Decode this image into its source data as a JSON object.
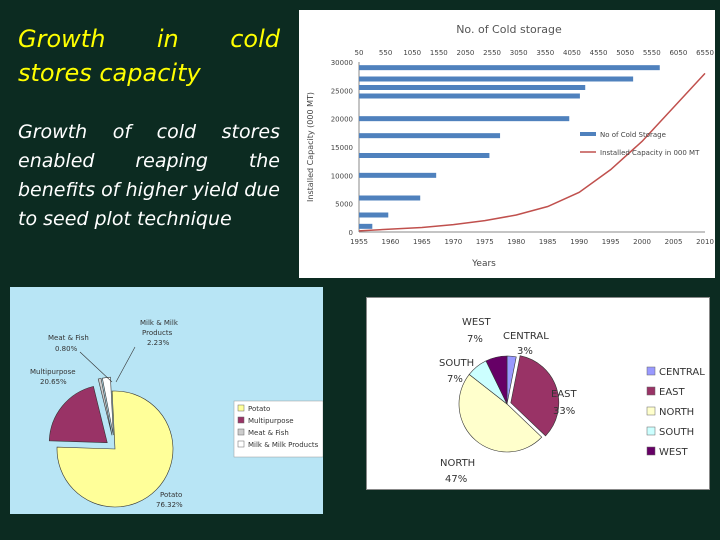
{
  "slide": {
    "title_line1_words": [
      "Growth",
      "in",
      "cold"
    ],
    "title_line2": "stores capacity",
    "body": "Growth of cold stores enabled reaping the benefits of higher yield due to seed plot technique"
  },
  "chart_data": [
    {
      "type": "bar",
      "title": "No. of Cold storage",
      "ylabel": "Installed Capacity (000 MT)",
      "xlabel": "Years",
      "secondary_axis_ticks": [
        50,
        550,
        1050,
        1550,
        2050,
        2550,
        3050,
        3550,
        4050,
        4550,
        5050,
        5550,
        6050,
        6550
      ],
      "secondary_axis_range": [
        50,
        6550
      ],
      "y_ticks": [
        0,
        5000,
        10000,
        15000,
        20000,
        25000,
        30000
      ],
      "ylim": [
        0,
        30000
      ],
      "x_ticks": [
        1955,
        1960,
        1965,
        1970,
        1975,
        1980,
        1985,
        1990,
        1995,
        2000,
        2005,
        2010
      ],
      "xlim": [
        1955,
        2010
      ],
      "bars": {
        "name": "No of Cold Storage",
        "color": "#4f81bd",
        "y_positions": [
          1000,
          3000,
          6000,
          10000,
          13500,
          17000,
          20000,
          24000,
          25500,
          27000,
          29000
        ],
        "values": [
          300,
          600,
          1200,
          1500,
          2500,
          2700,
          4000,
          4200,
          4300,
          5200,
          5700
        ]
      },
      "line": {
        "name": "Installed Capacity in 000 MT",
        "color": "#c0504d",
        "x": [
          1955,
          1960,
          1965,
          1970,
          1975,
          1980,
          1985,
          1990,
          1995,
          2000,
          2005,
          2010
        ],
        "y": [
          200,
          500,
          800,
          1300,
          2000,
          3000,
          4500,
          7000,
          11000,
          16000,
          22000,
          28000
        ]
      },
      "legend_position": "right"
    },
    {
      "type": "pie",
      "legend": [
        "Potato",
        "Multipurpose",
        "Meat & Fish",
        "Milk & Milk Products"
      ],
      "slices": [
        {
          "label": "Potato",
          "value": 76.32,
          "text": "76.32%",
          "color": "#ffff99"
        },
        {
          "label": "Multipurpose",
          "value": 20.65,
          "text": "20.65%",
          "color": "#993366"
        },
        {
          "label": "Meat & Fish",
          "value": 0.8,
          "text": "0.80%",
          "color": "#cccccc"
        },
        {
          "label": "Milk & Milk Products",
          "value": 2.23,
          "text": "2.23%",
          "color": "#ffffff"
        }
      ],
      "callouts": {
        "meat_line1": "Meat & Fish",
        "milk_line1": "Milk & Milk",
        "milk_line2": "Products",
        "multi_line1": "Multipurpose",
        "potato_line1": "Potato"
      }
    },
    {
      "type": "pie",
      "legend": [
        "CENTRAL",
        "EAST",
        "NORTH",
        "SOUTH",
        "WEST"
      ],
      "slices": [
        {
          "label": "CENTRAL",
          "value": 3,
          "text": "3%",
          "color": "#9999ff"
        },
        {
          "label": "EAST",
          "value": 33,
          "text": "33%",
          "color": "#993366"
        },
        {
          "label": "NORTH",
          "value": 47,
          "text": "47%",
          "color": "#ffffcc"
        },
        {
          "label": "SOUTH",
          "value": 7,
          "text": "7%",
          "color": "#ccffff"
        },
        {
          "label": "WEST",
          "value": 7,
          "text": "7%",
          "color": "#660066"
        }
      ]
    }
  ]
}
